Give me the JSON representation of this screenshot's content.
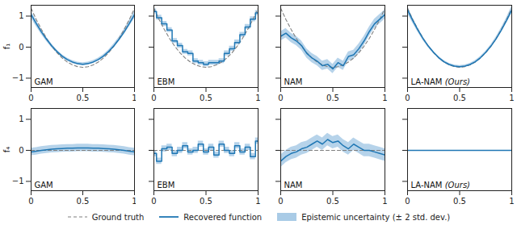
{
  "chart_data": [
    {
      "type": "line",
      "title": "GAM",
      "ylabel": "f₁",
      "tick_labels": true,
      "x": [
        0,
        0.05,
        0.1,
        0.15,
        0.2,
        0.25,
        0.3,
        0.35,
        0.4,
        0.45,
        0.5,
        0.55,
        0.6,
        0.65,
        0.7,
        0.75,
        0.8,
        0.85,
        0.9,
        0.95,
        1
      ],
      "xlim": [
        0,
        1
      ],
      "xticks": [
        0,
        0.5,
        1
      ],
      "ylim": [
        -1.3,
        1.35
      ],
      "yticks": [
        -1,
        0,
        1
      ],
      "series": [
        {
          "name": "Ground truth",
          "color": "#7f7f7f",
          "line_style": "dashed",
          "values": [
            1.25,
            0.89,
            0.57,
            0.28,
            0.03,
            -0.18,
            -0.35,
            -0.48,
            -0.57,
            -0.63,
            -0.65,
            -0.63,
            -0.57,
            -0.48,
            -0.35,
            -0.18,
            0.03,
            0.28,
            0.57,
            0.89,
            1.25
          ]
        },
        {
          "name": "Recovered function",
          "color": "#1f77b4",
          "line_style": "solid",
          "values": [
            1.05,
            0.76,
            0.49,
            0.25,
            0.04,
            -0.14,
            -0.29,
            -0.4,
            -0.48,
            -0.53,
            -0.55,
            -0.53,
            -0.48,
            -0.4,
            -0.29,
            -0.14,
            0.04,
            0.25,
            0.49,
            0.76,
            1.05
          ]
        }
      ],
      "band": {
        "name": "Epistemic uncertainty (± 2 std. dev.)",
        "color": "#a9cbe6",
        "lower": [
          0.93,
          0.66,
          0.41,
          0.18,
          -0.02,
          -0.19,
          -0.34,
          -0.45,
          -0.53,
          -0.58,
          -0.6,
          -0.58,
          -0.53,
          -0.45,
          -0.34,
          -0.19,
          -0.02,
          0.18,
          0.41,
          0.66,
          0.93
        ],
        "upper": [
          1.17,
          0.86,
          0.57,
          0.32,
          0.1,
          -0.09,
          -0.24,
          -0.35,
          -0.43,
          -0.48,
          -0.5,
          -0.48,
          -0.43,
          -0.35,
          -0.24,
          -0.09,
          0.1,
          0.32,
          0.57,
          0.86,
          1.17
        ]
      }
    },
    {
      "type": "line",
      "title": "EBM",
      "tick_labels": "x",
      "x": [
        0,
        0.05,
        0.1,
        0.15,
        0.2,
        0.25,
        0.3,
        0.35,
        0.4,
        0.45,
        0.5,
        0.55,
        0.6,
        0.65,
        0.7,
        0.75,
        0.8,
        0.85,
        0.9,
        0.95,
        1
      ],
      "xlim": [
        0,
        1
      ],
      "xticks": [
        0,
        0.5,
        1
      ],
      "ylim": [
        -1.3,
        1.35
      ],
      "yticks": [
        -1,
        0,
        1
      ],
      "series": [
        {
          "name": "Ground truth",
          "color": "#7f7f7f",
          "line_style": "dashed",
          "values": [
            1.25,
            0.89,
            0.57,
            0.28,
            0.03,
            -0.18,
            -0.35,
            -0.48,
            -0.57,
            -0.63,
            -0.65,
            -0.63,
            -0.57,
            -0.48,
            -0.35,
            -0.18,
            0.03,
            0.28,
            0.57,
            0.89,
            1.25
          ]
        },
        {
          "name": "Recovered function",
          "color": "#1f77b4",
          "line_style": "steps",
          "values": [
            1.15,
            0.95,
            0.75,
            0.55,
            0.2,
            0.05,
            -0.15,
            -0.2,
            -0.45,
            -0.5,
            -0.55,
            -0.5,
            -0.5,
            -0.45,
            -0.2,
            -0.05,
            0.15,
            0.4,
            0.65,
            0.9,
            1.1
          ]
        }
      ],
      "band": {
        "name": "Epistemic uncertainty (± 2 std. dev.)",
        "color": "#a9cbe6",
        "lower": [
          1.07,
          0.87,
          0.67,
          0.47,
          0.12,
          -0.03,
          -0.23,
          -0.28,
          -0.53,
          -0.58,
          -0.63,
          -0.58,
          -0.58,
          -0.53,
          -0.28,
          -0.13,
          0.07,
          0.32,
          0.57,
          0.82,
          1.02
        ],
        "upper": [
          1.23,
          1.03,
          0.83,
          0.63,
          0.28,
          0.13,
          -0.07,
          -0.12,
          -0.37,
          -0.42,
          -0.47,
          -0.42,
          -0.42,
          -0.37,
          -0.12,
          0.03,
          0.23,
          0.48,
          0.73,
          0.98,
          1.18
        ]
      }
    },
    {
      "type": "line",
      "title": "NAM",
      "tick_labels": "x",
      "x": [
        0,
        0.05,
        0.1,
        0.15,
        0.2,
        0.25,
        0.3,
        0.35,
        0.4,
        0.45,
        0.5,
        0.55,
        0.6,
        0.65,
        0.7,
        0.75,
        0.8,
        0.85,
        0.9,
        0.95,
        1
      ],
      "xlim": [
        0,
        1
      ],
      "xticks": [
        0,
        0.5,
        1
      ],
      "ylim": [
        -1.3,
        1.35
      ],
      "yticks": [
        -1,
        0,
        1
      ],
      "series": [
        {
          "name": "Ground truth",
          "color": "#7f7f7f",
          "line_style": "dashed",
          "values": [
            1.25,
            0.89,
            0.57,
            0.28,
            0.03,
            -0.18,
            -0.35,
            -0.48,
            -0.57,
            -0.63,
            -0.65,
            -0.63,
            -0.57,
            -0.48,
            -0.35,
            -0.18,
            0.03,
            0.28,
            0.57,
            0.89,
            1.25
          ]
        },
        {
          "name": "Recovered function",
          "color": "#1f77b4",
          "line_style": "solid",
          "values": [
            0.35,
            0.45,
            0.3,
            0.2,
            0.05,
            -0.2,
            -0.35,
            -0.45,
            -0.6,
            -0.55,
            -0.7,
            -0.5,
            -0.6,
            -0.3,
            -0.25,
            -0.05,
            0.2,
            0.5,
            0.75,
            0.9,
            1.05
          ]
        }
      ],
      "band": {
        "name": "Epistemic uncertainty (± 2 std. dev.)",
        "color": "#a9cbe6",
        "lower": [
          0.2,
          0.3,
          0.15,
          0.05,
          -0.1,
          -0.35,
          -0.5,
          -0.6,
          -0.75,
          -0.7,
          -0.85,
          -0.65,
          -0.75,
          -0.45,
          -0.4,
          -0.2,
          0.05,
          0.35,
          0.6,
          0.75,
          0.9
        ],
        "upper": [
          0.5,
          0.6,
          0.45,
          0.35,
          0.2,
          -0.05,
          -0.2,
          -0.3,
          -0.45,
          -0.4,
          -0.55,
          -0.35,
          -0.45,
          -0.15,
          -0.1,
          0.1,
          0.35,
          0.65,
          0.9,
          1.05,
          1.2
        ]
      }
    },
    {
      "type": "line",
      "title": "LA-NAM (Ours)",
      "tick_labels": "x",
      "x": [
        0,
        0.05,
        0.1,
        0.15,
        0.2,
        0.25,
        0.3,
        0.35,
        0.4,
        0.45,
        0.5,
        0.55,
        0.6,
        0.65,
        0.7,
        0.75,
        0.8,
        0.85,
        0.9,
        0.95,
        1
      ],
      "xlim": [
        0,
        1
      ],
      "xticks": [
        0,
        0.5,
        1
      ],
      "ylim": [
        -1.3,
        1.35
      ],
      "yticks": [
        -1,
        0,
        1
      ],
      "series": [
        {
          "name": "Ground truth",
          "color": "#7f7f7f",
          "line_style": "dashed",
          "values": [
            1.25,
            0.89,
            0.57,
            0.28,
            0.03,
            -0.18,
            -0.35,
            -0.48,
            -0.57,
            -0.63,
            -0.65,
            -0.63,
            -0.57,
            -0.48,
            -0.35,
            -0.18,
            0.03,
            0.28,
            0.57,
            0.89,
            1.25
          ]
        },
        {
          "name": "Recovered function",
          "color": "#1f77b4",
          "line_style": "solid",
          "values": [
            1.2,
            0.86,
            0.55,
            0.27,
            0.03,
            -0.17,
            -0.34,
            -0.47,
            -0.56,
            -0.61,
            -0.63,
            -0.61,
            -0.56,
            -0.47,
            -0.34,
            -0.17,
            0.03,
            0.27,
            0.55,
            0.86,
            1.2
          ]
        }
      ],
      "band": {
        "name": "Epistemic uncertainty (± 2 std. dev.)",
        "color": "#a9cbe6",
        "lower": [
          1.08,
          0.77,
          0.48,
          0.21,
          -0.02,
          -0.21,
          -0.38,
          -0.51,
          -0.6,
          -0.65,
          -0.67,
          -0.65,
          -0.6,
          -0.51,
          -0.38,
          -0.21,
          -0.02,
          0.21,
          0.48,
          0.77,
          1.08
        ],
        "upper": [
          1.32,
          0.95,
          0.62,
          0.33,
          0.08,
          -0.13,
          -0.3,
          -0.43,
          -0.52,
          -0.57,
          -0.59,
          -0.57,
          -0.52,
          -0.43,
          -0.3,
          -0.13,
          0.08,
          0.33,
          0.62,
          0.95,
          1.32
        ]
      }
    },
    {
      "type": "line",
      "title": "GAM",
      "ylabel": "f₄",
      "tick_labels": true,
      "x": [
        0,
        0.05,
        0.1,
        0.15,
        0.2,
        0.25,
        0.3,
        0.35,
        0.4,
        0.45,
        0.5,
        0.55,
        0.6,
        0.65,
        0.7,
        0.75,
        0.8,
        0.85,
        0.9,
        0.95,
        1
      ],
      "xlim": [
        0,
        1
      ],
      "xticks": [
        0,
        0.5,
        1
      ],
      "ylim": [
        -1.3,
        1.35
      ],
      "yticks": [
        -1,
        0,
        1
      ],
      "series": [
        {
          "name": "Ground truth",
          "color": "#7f7f7f",
          "line_style": "dashed",
          "values": [
            0,
            0,
            0,
            0,
            0,
            0,
            0,
            0,
            0,
            0,
            0,
            0,
            0,
            0,
            0,
            0,
            0,
            0,
            0,
            0,
            0
          ]
        },
        {
          "name": "Recovered function",
          "color": "#1f77b4",
          "line_style": "solid",
          "values": [
            -0.05,
            -0.03,
            0,
            0.02,
            0.04,
            0.05,
            0.06,
            0.07,
            0.07,
            0.08,
            0.08,
            0.08,
            0.07,
            0.07,
            0.06,
            0.05,
            0.04,
            0.02,
            0,
            -0.03,
            -0.05
          ]
        }
      ],
      "band": {
        "name": "Epistemic uncertainty (± 2 std. dev.)",
        "color": "#a9cbe6",
        "lower": [
          -0.17,
          -0.15,
          -0.12,
          -0.1,
          -0.08,
          -0.07,
          -0.06,
          -0.05,
          -0.05,
          -0.04,
          -0.04,
          -0.04,
          -0.05,
          -0.05,
          -0.06,
          -0.07,
          -0.08,
          -0.1,
          -0.12,
          -0.15,
          -0.17
        ],
        "upper": [
          0.07,
          0.09,
          0.12,
          0.14,
          0.16,
          0.17,
          0.18,
          0.19,
          0.19,
          0.2,
          0.2,
          0.2,
          0.19,
          0.19,
          0.18,
          0.17,
          0.16,
          0.14,
          0.12,
          0.09,
          0.07
        ]
      }
    },
    {
      "type": "line",
      "title": "EBM",
      "tick_labels": "x",
      "x": [
        0,
        0.05,
        0.1,
        0.15,
        0.2,
        0.25,
        0.3,
        0.35,
        0.4,
        0.45,
        0.5,
        0.55,
        0.6,
        0.65,
        0.7,
        0.75,
        0.8,
        0.85,
        0.9,
        0.95,
        1
      ],
      "xlim": [
        0,
        1
      ],
      "xticks": [
        0,
        0.5,
        1
      ],
      "ylim": [
        -1.3,
        1.35
      ],
      "yticks": [
        -1,
        0,
        1
      ],
      "series": [
        {
          "name": "Ground truth",
          "color": "#7f7f7f",
          "line_style": "dashed",
          "values": [
            0,
            0,
            0,
            0,
            0,
            0,
            0,
            0,
            0,
            0,
            0,
            0,
            0,
            0,
            0,
            0,
            0,
            0,
            0,
            0,
            0
          ]
        },
        {
          "name": "Recovered function",
          "color": "#1f77b4",
          "line_style": "steps",
          "values": [
            -0.1,
            -0.35,
            0.05,
            0.1,
            -0.1,
            0,
            0.15,
            -0.05,
            0,
            0.2,
            -0.05,
            0.1,
            -0.15,
            0.2,
            0,
            -0.1,
            0.15,
            -0.05,
            0.1,
            -0.2,
            0.3
          ]
        }
      ],
      "band": {
        "name": "Epistemic uncertainty (± 2 std. dev.)",
        "color": "#a9cbe6",
        "lower": [
          -0.2,
          -0.45,
          -0.05,
          0,
          -0.2,
          -0.1,
          0.05,
          -0.15,
          -0.1,
          0.1,
          -0.15,
          0,
          -0.25,
          0.1,
          -0.1,
          -0.2,
          0.05,
          -0.15,
          0,
          -0.3,
          0.2
        ],
        "upper": [
          0,
          -0.25,
          0.15,
          0.2,
          0,
          0.1,
          0.25,
          0.05,
          0.1,
          0.3,
          0.05,
          0.2,
          -0.05,
          0.3,
          0.1,
          0,
          0.25,
          0.05,
          0.2,
          -0.1,
          0.4
        ]
      }
    },
    {
      "type": "line",
      "title": "NAM",
      "tick_labels": "x",
      "x": [
        0,
        0.05,
        0.1,
        0.15,
        0.2,
        0.25,
        0.3,
        0.35,
        0.4,
        0.45,
        0.5,
        0.55,
        0.6,
        0.65,
        0.7,
        0.75,
        0.8,
        0.85,
        0.9,
        0.95,
        1
      ],
      "xlim": [
        0,
        1
      ],
      "xticks": [
        0,
        0.5,
        1
      ],
      "ylim": [
        -1.3,
        1.35
      ],
      "yticks": [
        -1,
        0,
        1
      ],
      "series": [
        {
          "name": "Ground truth",
          "color": "#7f7f7f",
          "line_style": "dashed",
          "values": [
            0,
            0,
            0,
            0,
            0,
            0,
            0,
            0,
            0,
            0,
            0,
            0,
            0,
            0,
            0,
            0,
            0,
            0,
            0,
            0,
            0
          ]
        },
        {
          "name": "Recovered function",
          "color": "#1f77b4",
          "line_style": "solid",
          "values": [
            -0.35,
            -0.2,
            -0.1,
            -0.05,
            0.05,
            0.1,
            0.2,
            0.3,
            0.2,
            0.35,
            0.25,
            0.3,
            0.15,
            0.05,
            0.2,
            0.1,
            0,
            0,
            -0.05,
            -0.1,
            -0.15
          ]
        }
      ],
      "band": {
        "name": "Epistemic uncertainty (± 2 std. dev.)",
        "color": "#a9cbe6",
        "lower": [
          -0.55,
          -0.4,
          -0.3,
          -0.25,
          -0.15,
          -0.1,
          0,
          0.1,
          0,
          0.15,
          0.05,
          0.1,
          -0.05,
          -0.15,
          0,
          -0.1,
          -0.2,
          -0.2,
          -0.25,
          -0.3,
          -0.35
        ],
        "upper": [
          -0.15,
          0,
          0.1,
          0.15,
          0.25,
          0.3,
          0.4,
          0.5,
          0.4,
          0.55,
          0.45,
          0.5,
          0.35,
          0.25,
          0.4,
          0.3,
          0.2,
          0.2,
          0.15,
          0.1,
          0.05
        ]
      }
    },
    {
      "type": "line",
      "title": "LA-NAM (Ours)",
      "tick_labels": "x",
      "x": [
        0,
        0.05,
        0.1,
        0.15,
        0.2,
        0.25,
        0.3,
        0.35,
        0.4,
        0.45,
        0.5,
        0.55,
        0.6,
        0.65,
        0.7,
        0.75,
        0.8,
        0.85,
        0.9,
        0.95,
        1
      ],
      "xlim": [
        0,
        1
      ],
      "xticks": [
        0,
        0.5,
        1
      ],
      "ylim": [
        -1.3,
        1.35
      ],
      "yticks": [
        -1,
        0,
        1
      ],
      "series": [
        {
          "name": "Ground truth",
          "color": "#7f7f7f",
          "line_style": "dashed",
          "values": [
            0,
            0,
            0,
            0,
            0,
            0,
            0,
            0,
            0,
            0,
            0,
            0,
            0,
            0,
            0,
            0,
            0,
            0,
            0,
            0,
            0
          ]
        },
        {
          "name": "Recovered function",
          "color": "#1f77b4",
          "line_style": "solid",
          "values": [
            0,
            0,
            0,
            0,
            0,
            0,
            0,
            0,
            0,
            0,
            0,
            0,
            0,
            0,
            0,
            0,
            0,
            0,
            0,
            0,
            0
          ]
        }
      ],
      "band": {
        "name": "Epistemic uncertainty (± 2 std. dev.)",
        "color": "#a9cbe6",
        "lower": [
          0,
          0,
          0,
          0,
          0,
          0,
          0,
          0,
          0,
          0,
          0,
          0,
          0,
          0,
          0,
          0,
          0,
          0,
          0,
          0,
          0
        ],
        "upper": [
          0,
          0,
          0,
          0,
          0,
          0,
          0,
          0,
          0,
          0,
          0,
          0,
          0,
          0,
          0,
          0,
          0,
          0,
          0,
          0,
          0
        ]
      }
    }
  ]
}
